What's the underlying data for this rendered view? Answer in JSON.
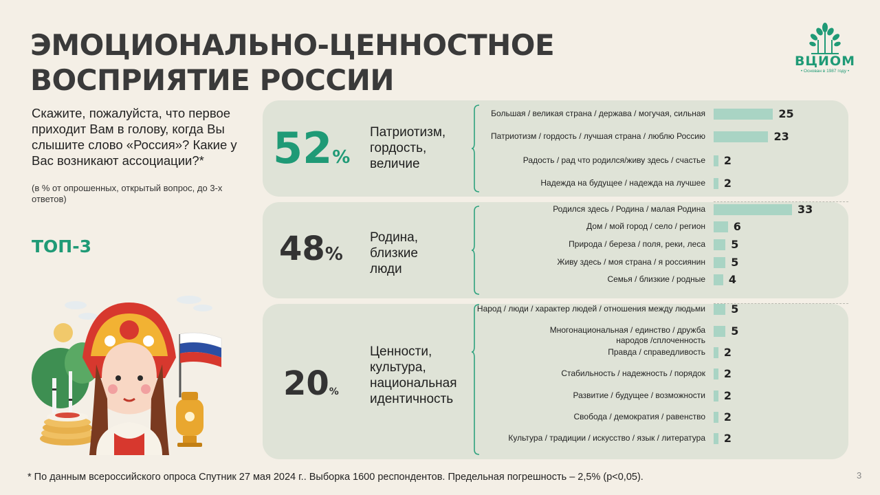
{
  "title_lines": [
    "ЭМОЦИОНАЛЬНО-ЦЕННОСТНОЕ",
    "ВОСПРИЯТИЕ РОССИИ"
  ],
  "question": "Скажите, пожалуйста, что первое приходит Вам в голову, когда Вы слышите слово «Россия»? Какие у Вас возникают ассоциации?*",
  "question_note": "(в % от опрошенных, открытый вопрос, до 3-х ответов)",
  "top_label": "ТОП-3",
  "logo": {
    "name": "ВЦИОМ",
    "subtitle": "• Основан в 1987 году •"
  },
  "colors": {
    "accent": "#1f9a76",
    "bar": "#a9d4c4",
    "panel": "#dfe3d7",
    "background": "#f4efe6"
  },
  "chart_data": {
    "type": "bar",
    "orientation": "horizontal",
    "groups": [
      {
        "percent": "52",
        "percent_sign": "%",
        "label": "Патриотизм, гордость, величие",
        "items": [
          {
            "label": "Большая / великая страна / держава / могучая, сильная",
            "value": 25
          },
          {
            "label": "Патриотизм / гордость / лучшая страна / люблю Россию",
            "value": 23
          },
          {
            "label": "Радость / рад что родился/живу здесь / счастье",
            "value": 2
          },
          {
            "label": "Надежда на будущее / надежда на лучшее",
            "value": 2
          }
        ]
      },
      {
        "percent": "48",
        "percent_sign": "%",
        "label": "Родина, близкие люди",
        "items": [
          {
            "label": "Родился здесь / Родина / малая Родина",
            "value": 33
          },
          {
            "label": "Дом / мой город / село / регион",
            "value": 6
          },
          {
            "label": "Природа / береза / поля, реки, леса",
            "value": 5
          },
          {
            "label": "Живу здесь / моя страна / я россиянин",
            "value": 5
          },
          {
            "label": "Семья / близкие / родные",
            "value": 4
          }
        ]
      },
      {
        "percent": "20",
        "percent_sign": "%",
        "label": "Ценности, культура, национальная идентичность",
        "items": [
          {
            "label": "Народ / люди / характер людей / отношения между людьми",
            "value": 5
          },
          {
            "label": "Многонациональная / единство / дружба народов /сплоченность",
            "value": 5
          },
          {
            "label": "Правда / справедливость",
            "value": 2
          },
          {
            "label": "Стабильность / надежность / порядок",
            "value": 2
          },
          {
            "label": "Развитие / будущее / возможности",
            "value": 2
          },
          {
            "label": "Свобода / демократия / равенство",
            "value": 2
          },
          {
            "label": "Культура / традиции / искусство / язык / литература",
            "value": 2
          }
        ]
      }
    ]
  },
  "footnote": "* По данным всероссийского опроса Спутник 27 мая 2024 г.. Выборка 1600 респондентов. Предельная погрешность – 2,5% (р<0,05).",
  "page_number": "3"
}
